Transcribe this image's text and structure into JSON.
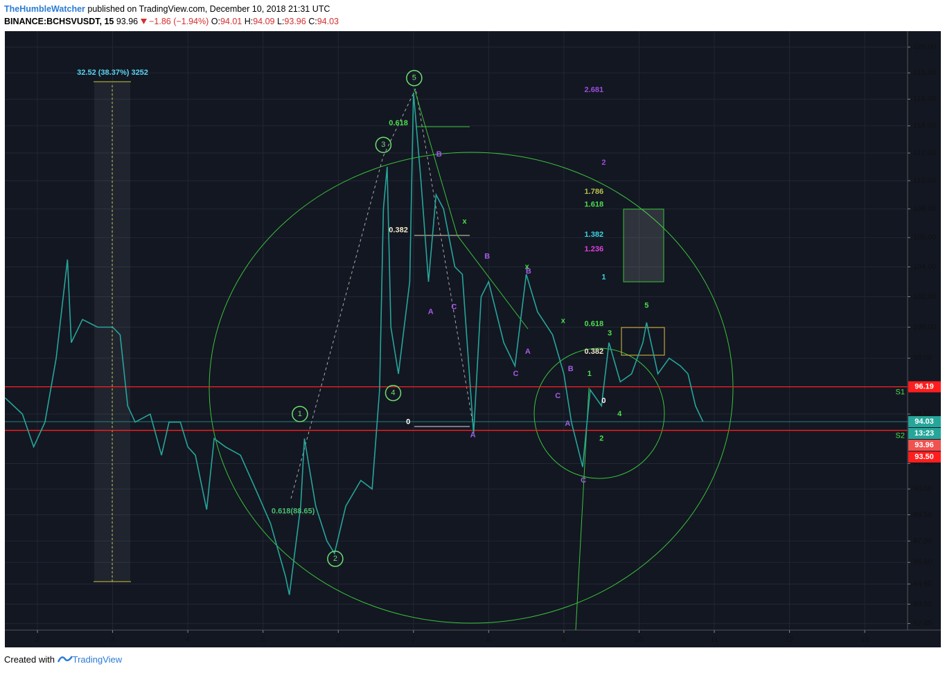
{
  "header": {
    "author": "TheHumbleWatcher",
    "published": "published on TradingView.com, December 10, 2018 21:31 UTC",
    "symbol": "BINANCE:BCHSVUSDT, 15",
    "last": "93.96",
    "change": "−1.86 (−1.94%)",
    "ohlc": [
      {
        "key": "O:",
        "value": "94.01"
      },
      {
        "key": "H:",
        "value": "94.09"
      },
      {
        "key": "L:",
        "value": "93.96"
      },
      {
        "key": "C:",
        "value": "94.03"
      }
    ]
  },
  "footer": {
    "created": "Created with",
    "brand": "TradingView"
  },
  "chart_data": {
    "type": "line",
    "log": true,
    "color": "#26a69a",
    "grid": true,
    "x": [
      1.57,
      1.8,
      1.95,
      2.1,
      2.25,
      2.4,
      2.45,
      2.6,
      2.8,
      3.0,
      3.1,
      3.2,
      3.3,
      3.5,
      3.65,
      3.75,
      3.9,
      4.0,
      4.1,
      4.25,
      4.35,
      4.5,
      4.7,
      4.9,
      5.1,
      5.3,
      5.35,
      5.5,
      5.55,
      5.7,
      5.85,
      5.95,
      6.1,
      6.3,
      6.45,
      6.55,
      6.6,
      6.65,
      6.7,
      6.8,
      6.95,
      7.0,
      7.1,
      7.2,
      7.3,
      7.4,
      7.55,
      7.65,
      7.8,
      7.9,
      8.0,
      8.2,
      8.35,
      8.5,
      8.65,
      8.85,
      9.0,
      9.1,
      9.25,
      9.35,
      9.5,
      9.6,
      9.75,
      9.9,
      10.05,
      10.1,
      10.25,
      10.4,
      10.55,
      10.65,
      10.75,
      10.85
    ],
    "values": [
      95.5,
      94.5,
      92.5,
      94,
      98,
      104.5,
      99,
      100.5,
      100,
      100,
      99.5,
      95,
      94,
      94.5,
      92,
      94,
      94,
      92.5,
      92,
      88.8,
      93,
      92.5,
      92,
      90,
      88,
      85,
      84,
      89,
      93,
      89,
      87,
      86.3,
      89,
      90.5,
      90,
      96,
      108,
      111,
      100,
      97,
      103,
      116.5,
      110,
      103,
      109,
      108,
      104,
      103.5,
      93.3,
      102,
      103,
      99,
      97.5,
      103.5,
      101,
      99.5,
      97,
      94,
      91.3,
      96,
      95,
      99,
      96.5,
      97,
      99,
      100.3,
      97,
      98,
      97.5,
      97,
      95,
      94.03
    ],
    "xlim": [
      1.567,
      13.57
    ],
    "xticks": [
      2,
      3,
      4,
      5,
      6,
      7,
      8,
      9,
      10,
      11,
      12,
      13
    ],
    "ylim": [
      82.1,
      121.25
    ],
    "yticks": [
      {
        "value": 82.45,
        "label": "82.45"
      },
      {
        "value": 83.5,
        "label": "83.50"
      },
      {
        "value": 84.6,
        "label": "84.60"
      },
      {
        "value": 85.8,
        "label": "85.80"
      },
      {
        "value": 87,
        "label": "87.00"
      },
      {
        "value": 88.5,
        "label": "88.50"
      },
      {
        "value": 90,
        "label": "90.00"
      },
      {
        "value": 91.5,
        "label": "91.50"
      },
      {
        "value": 94.5,
        "label": "94.50"
      },
      {
        "value": 98,
        "label": "98.00"
      },
      {
        "value": 100,
        "label": "100.00"
      },
      {
        "value": 102,
        "label": "102.00"
      },
      {
        "value": 104,
        "label": "104.00"
      },
      {
        "value": 106,
        "label": "106.00"
      },
      {
        "value": 108,
        "label": "108.00"
      },
      {
        "value": 110,
        "label": "110.00"
      },
      {
        "value": 112,
        "label": "112.00"
      },
      {
        "value": 114,
        "label": "114.00"
      },
      {
        "value": 116,
        "label": "116.00"
      },
      {
        "value": 118,
        "label": "118.00"
      },
      {
        "value": 120,
        "label": "120.00"
      }
    ],
    "hlines": [
      {
        "name": "S1",
        "value": 96.19,
        "color": "#ff1e1e"
      },
      {
        "name": "S2",
        "value": 93.5,
        "color": "#ff1e1e"
      },
      {
        "value": 94.03,
        "color": "#26a69a"
      }
    ],
    "price_labels": [
      {
        "value": 96.19,
        "color": "#ff1e1e"
      },
      {
        "value": 94.03,
        "color": "#26a69a"
      },
      {
        "value": 93.96,
        "color": "#ef5350"
      },
      {
        "value": 93.5,
        "label": "93.50",
        "color": "#ff1e1e"
      }
    ],
    "countdown": "13:23",
    "annotations": [
      {
        "text": "5",
        "x": 7.01,
        "y": 117.6,
        "color": "#6ee06e",
        "circled": true
      },
      {
        "text": "3",
        "x": 6.6,
        "y": 112.6,
        "color": "#6ee06e",
        "circled": true
      },
      {
        "text": "1",
        "x": 5.49,
        "y": 94.5,
        "color": "#6ee06e",
        "circled": true
      },
      {
        "text": "2",
        "x": 5.96,
        "y": 86.0,
        "color": "#6ee06e",
        "circled": true
      },
      {
        "text": "4",
        "x": 6.73,
        "y": 95.8,
        "color": "#6ee06e",
        "circled": true
      },
      {
        "text": "0.618",
        "x": 6.8,
        "y": 114.2,
        "color": "#4cdf4c"
      },
      {
        "text": "0.382",
        "x": 6.8,
        "y": 106.5,
        "color": "#f0e8c8"
      },
      {
        "text": "0",
        "x": 6.93,
        "y": 94.0,
        "color": "#ffffff"
      },
      {
        "text": "32.52 (38.37%) 3252",
        "x": 3.0,
        "y": 118.0,
        "color": "#5ad4f0"
      },
      {
        "text": "0.618(88.65)",
        "x": 5.4,
        "y": 88.7,
        "color": "#4cbf70"
      },
      {
        "text": "2.681",
        "x": 9.4,
        "y": 116.7,
        "color": "#9c4ddc"
      },
      {
        "text": "2",
        "x": 9.53,
        "y": 111.3,
        "color": "#9c4ddc"
      },
      {
        "text": "1.786",
        "x": 9.4,
        "y": 109.2,
        "color": "#b6c24a"
      },
      {
        "text": "1.618",
        "x": 9.4,
        "y": 108.3,
        "color": "#4cdf4c"
      },
      {
        "text": "1.382",
        "x": 9.4,
        "y": 106.2,
        "color": "#3ad4e0"
      },
      {
        "text": "1.236",
        "x": 9.4,
        "y": 105.2,
        "color": "#e040e0"
      },
      {
        "text": "1",
        "x": 9.53,
        "y": 103.3,
        "color": "#3ad4e0"
      },
      {
        "text": "0.618",
        "x": 9.4,
        "y": 100.2,
        "color": "#4cdf4c"
      },
      {
        "text": "0.382",
        "x": 9.4,
        "y": 98.4,
        "color": "#f0e8c8"
      },
      {
        "text": "0",
        "x": 9.53,
        "y": 95.3,
        "color": "#ffffff"
      },
      {
        "text": "A",
        "x": 7.23,
        "y": 101.0,
        "color": "#a55ce8"
      },
      {
        "text": "B",
        "x": 7.34,
        "y": 111.9,
        "color": "#a55ce8"
      },
      {
        "text": "C",
        "x": 7.54,
        "y": 101.3,
        "color": "#a55ce8"
      },
      {
        "text": "A",
        "x": 7.79,
        "y": 93.2,
        "color": "#a55ce8"
      },
      {
        "text": "B",
        "x": 7.98,
        "y": 104.7,
        "color": "#a55ce8"
      },
      {
        "text": "C",
        "x": 8.36,
        "y": 97.0,
        "color": "#a55ce8"
      },
      {
        "text": "A",
        "x": 8.52,
        "y": 98.4,
        "color": "#a55ce8"
      },
      {
        "text": "B",
        "x": 8.53,
        "y": 103.7,
        "color": "#a55ce8"
      },
      {
        "text": "C",
        "x": 8.92,
        "y": 95.6,
        "color": "#a55ce8"
      },
      {
        "text": "B",
        "x": 9.09,
        "y": 97.3,
        "color": "#a55ce8"
      },
      {
        "text": "A",
        "x": 9.05,
        "y": 93.9,
        "color": "#a55ce8"
      },
      {
        "text": "C",
        "x": 9.26,
        "y": 90.5,
        "color": "#a55ce8"
      },
      {
        "text": "x",
        "x": 7.68,
        "y": 107.1,
        "color": "#4cdf4c"
      },
      {
        "text": "x",
        "x": 8.51,
        "y": 104.0,
        "color": "#4cdf4c"
      },
      {
        "text": "x",
        "x": 8.99,
        "y": 100.4,
        "color": "#4cdf4c"
      },
      {
        "text": "1",
        "x": 9.34,
        "y": 97.0,
        "color": "#4cdf4c"
      },
      {
        "text": "2",
        "x": 9.5,
        "y": 93.0,
        "color": "#4cdf4c"
      },
      {
        "text": "3",
        "x": 9.61,
        "y": 99.6,
        "color": "#4cdf4c"
      },
      {
        "text": "4",
        "x": 9.74,
        "y": 94.5,
        "color": "#4cdf4c"
      },
      {
        "text": "5",
        "x": 10.1,
        "y": 101.4,
        "color": "#4cdf4c"
      }
    ]
  }
}
